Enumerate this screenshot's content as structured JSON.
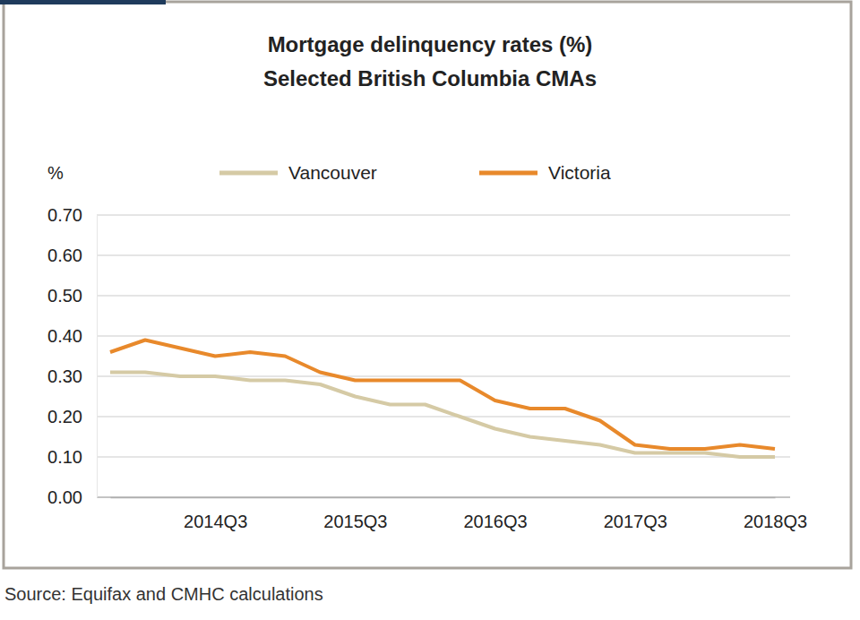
{
  "chart_data": {
    "type": "line",
    "title": "Mortgage delinquency rates (%)",
    "subtitle": "Selected British Columbia CMAs",
    "y_label": "%",
    "source": "Source: Equifax and CMHC calculations",
    "categories": [
      null,
      null,
      null,
      "2014Q3",
      null,
      null,
      null,
      "2015Q3",
      null,
      null,
      null,
      "2016Q3",
      null,
      null,
      null,
      "2017Q3",
      null,
      null,
      null,
      "2018Q3"
    ],
    "series": [
      {
        "name": "Vancouver",
        "color": "#d5caa5",
        "values": [
          0.31,
          0.31,
          0.3,
          0.3,
          0.29,
          0.29,
          0.28,
          0.25,
          0.23,
          0.23,
          0.2,
          0.17,
          0.15,
          0.14,
          0.13,
          0.11,
          0.11,
          0.11,
          0.1,
          0.1
        ]
      },
      {
        "name": "Victoria",
        "color": "#e8892b",
        "values": [
          0.36,
          0.39,
          0.37,
          0.35,
          0.36,
          0.35,
          0.31,
          0.29,
          0.29,
          0.29,
          0.29,
          0.24,
          0.22,
          0.22,
          0.19,
          0.13,
          0.12,
          0.12,
          0.13,
          0.12
        ]
      }
    ],
    "ylim": [
      0,
      0.7
    ],
    "yticks": [
      {
        "value": 0,
        "label": "0.00"
      },
      {
        "value": 0.1,
        "label": "0.10"
      },
      {
        "value": 0.2,
        "label": "0.20"
      },
      {
        "value": 0.3,
        "label": "0.30"
      },
      {
        "value": 0.4,
        "label": "0.40"
      },
      {
        "value": 0.5,
        "label": "0.50"
      },
      {
        "value": 0.6,
        "label": "0.60"
      },
      {
        "value": 0.7,
        "label": "0.70"
      }
    ],
    "grid": true,
    "legend": "top"
  }
}
